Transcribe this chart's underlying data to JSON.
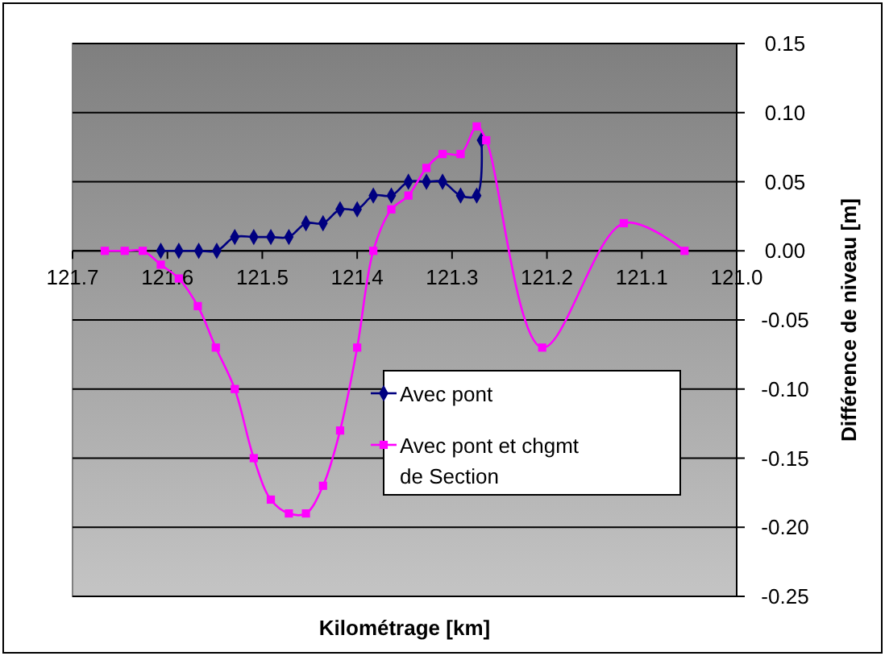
{
  "chart_data": {
    "type": "line",
    "xlabel": "Kilométrage [km]",
    "ylabel": "Différence de niveau [m]",
    "xlim": [
      121.7,
      121.0
    ],
    "xticks": [
      121.7,
      121.6,
      121.5,
      121.4,
      121.3,
      121.2,
      121.1,
      {
        "value": 121.0,
        "label": "121.0"
      }
    ],
    "ylim": [
      -0.25,
      0.15
    ],
    "yticks": [
      0.15,
      {
        "value": 0.1,
        "label": "0.10"
      },
      0.05,
      {
        "value": 0,
        "label": "0.00"
      },
      -0.05,
      {
        "value": -0.1,
        "label": "-0.10"
      },
      -0.15,
      {
        "value": -0.2,
        "label": "-0.20"
      },
      -0.25
    ],
    "grid": "y",
    "legend": "right",
    "series": [
      {
        "name": "Avec pont",
        "color": "#000080",
        "marker": "diamond",
        "x": [
          121.607,
          121.588,
          121.567,
          121.548,
          121.529,
          121.509,
          121.491,
          121.472,
          121.454,
          121.436,
          121.418,
          121.4,
          121.383,
          121.364,
          121.346,
          121.327,
          121.31,
          121.291,
          121.274,
          121.269
        ],
        "values": [
          0,
          0,
          0,
          0,
          0.01,
          0.01,
          0.01,
          0.01,
          0.02,
          0.02,
          0.03,
          0.03,
          0.04,
          0.04,
          0.05,
          0.05,
          0.05,
          0.04,
          0.04,
          0.08
        ]
      },
      {
        "name": "Avec pont et chgmt de Section",
        "color": "#ff00ff",
        "marker": "square",
        "x": [
          121.666,
          121.645,
          121.626,
          121.607,
          121.588,
          121.568,
          121.549,
          121.529,
          121.509,
          121.491,
          121.472,
          121.454,
          121.436,
          121.418,
          121.4,
          121.383,
          121.364,
          121.346,
          121.327,
          121.31,
          121.291,
          121.274,
          121.264,
          121.205,
          121.119,
          121.055
        ],
        "values": [
          0,
          0,
          0,
          -0.01,
          -0.02,
          -0.04,
          -0.07,
          -0.1,
          -0.15,
          -0.18,
          -0.19,
          -0.19,
          -0.17,
          -0.13,
          -0.07,
          0,
          0.03,
          0.04,
          0.06,
          0.07,
          0.07,
          0.09,
          0.08,
          -0.07,
          0.02,
          0
        ]
      }
    ]
  }
}
